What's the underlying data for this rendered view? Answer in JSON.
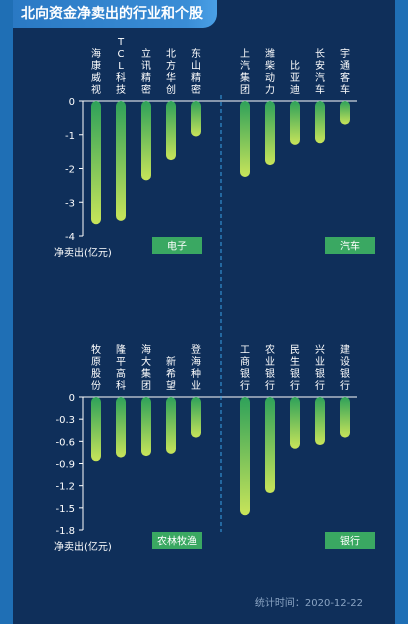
{
  "title": "北向资金净卖出的行业和个股",
  "footer": "统计时间：2020-12-22",
  "colors": {
    "background": "#0f2f5a",
    "bar_top": "#2ea15a",
    "bar_bottom": "#c8e45a",
    "tag": "#3aa862",
    "text": "#ffffff",
    "muted": "#8aa4c3"
  },
  "chart_data": [
    {
      "type": "bar",
      "ylabel": "净卖出(亿元)",
      "ylim": [
        -4,
        0
      ],
      "yticks": [
        0,
        -1,
        -2,
        -3,
        -4
      ],
      "groups": [
        {
          "name": "电子",
          "categories": [
            "海康威视",
            "TCL科技",
            "立讯精密",
            "北方华创",
            "东山精密"
          ],
          "values": [
            -3.65,
            -3.55,
            -2.35,
            -1.75,
            -1.05
          ]
        },
        {
          "name": "汽车",
          "categories": [
            "上汽集团",
            "潍柴动力",
            "比亚迪",
            "长安汽车",
            "宇通客车"
          ],
          "values": [
            -2.25,
            -1.9,
            -1.3,
            -1.25,
            -0.7
          ]
        }
      ]
    },
    {
      "type": "bar",
      "ylabel": "净卖出(亿元)",
      "ylim": [
        -1.8,
        0
      ],
      "yticks": [
        0,
        -0.3,
        -0.6,
        -0.9,
        -1.2,
        -1.5,
        -1.8
      ],
      "groups": [
        {
          "name": "农林牧渔",
          "categories": [
            "牧原股份",
            "隆平高科",
            "海大集团",
            "新希望",
            "登海种业"
          ],
          "values": [
            -0.87,
            -0.82,
            -0.8,
            -0.77,
            -0.55
          ]
        },
        {
          "name": "银行",
          "categories": [
            "工商银行",
            "农业银行",
            "民生银行",
            "兴业银行",
            "建设银行"
          ],
          "values": [
            -1.6,
            -1.3,
            -0.7,
            -0.65,
            -0.55
          ]
        }
      ]
    }
  ]
}
